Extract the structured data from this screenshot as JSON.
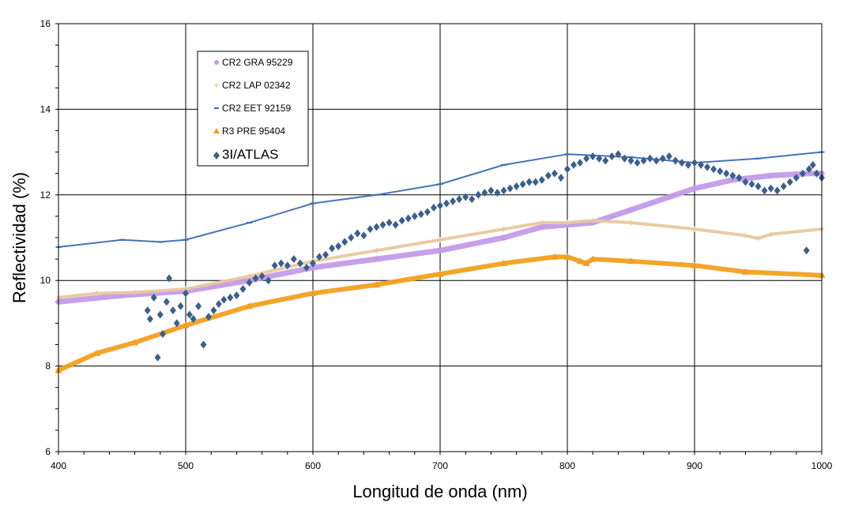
{
  "chart_data": {
    "type": "scatter",
    "title": "",
    "xlabel": "Longitud de onda (nm)",
    "ylabel": "Reflectividad (%)",
    "xlim": [
      400,
      1000
    ],
    "ylim": [
      6,
      16
    ],
    "xticks": [
      400,
      500,
      600,
      700,
      800,
      900,
      1000
    ],
    "yticks": [
      6,
      8,
      10,
      12,
      14,
      16
    ],
    "grid": true,
    "legend_position": "top-left",
    "series": [
      {
        "name": "CR2 GRA 95229",
        "color": "#c39be8",
        "marker": "circle",
        "x": [
          400,
          450,
          500,
          550,
          600,
          650,
          700,
          750,
          780,
          800,
          820,
          850,
          880,
          900,
          930,
          960,
          990,
          1000
        ],
        "y": [
          9.5,
          9.65,
          9.75,
          10.0,
          10.3,
          10.5,
          10.7,
          11.0,
          11.25,
          11.3,
          11.35,
          11.65,
          11.95,
          12.15,
          12.35,
          12.45,
          12.5,
          12.5
        ]
      },
      {
        "name": "CR2 LAP 02342",
        "color": "#e8c8a0",
        "marker": "plus",
        "x": [
          400,
          430,
          460,
          500,
          550,
          600,
          650,
          700,
          750,
          780,
          800,
          820,
          850,
          900,
          940,
          950,
          960,
          1000
        ],
        "y": [
          9.6,
          9.7,
          9.72,
          9.8,
          10.1,
          10.45,
          10.7,
          10.95,
          11.2,
          11.35,
          11.35,
          11.4,
          11.35,
          11.2,
          11.05,
          10.98,
          11.08,
          11.2
        ]
      },
      {
        "name": "CR2 EET 92159",
        "color": "#3d6bb3",
        "marker": "dash",
        "x": [
          400,
          450,
          480,
          500,
          550,
          600,
          650,
          700,
          750,
          800,
          850,
          900,
          950,
          1000
        ],
        "y": [
          10.78,
          10.95,
          10.9,
          10.95,
          11.35,
          11.8,
          12.0,
          12.25,
          12.7,
          12.95,
          12.88,
          12.75,
          12.85,
          13.0
        ]
      },
      {
        "name": "R3 PRE 95404",
        "color": "#f2a020",
        "marker": "triangle",
        "x": [
          400,
          430,
          460,
          500,
          550,
          600,
          650,
          700,
          750,
          790,
          800,
          810,
          815,
          820,
          850,
          900,
          940,
          1000
        ],
        "y": [
          7.9,
          8.3,
          8.55,
          8.95,
          9.4,
          9.7,
          9.9,
          10.15,
          10.4,
          10.55,
          10.55,
          10.45,
          10.4,
          10.5,
          10.45,
          10.35,
          10.2,
          10.12
        ]
      },
      {
        "name": "3I/ATLAS",
        "color": "#3d5f8a",
        "marker": "diamond",
        "x": [
          470,
          472,
          475,
          478,
          480,
          482,
          485,
          487,
          490,
          493,
          496,
          500,
          503,
          506,
          510,
          514,
          518,
          522,
          526,
          530,
          535,
          540,
          545,
          550,
          555,
          560,
          565,
          570,
          575,
          580,
          585,
          590,
          595,
          600,
          605,
          610,
          615,
          620,
          625,
          630,
          635,
          640,
          645,
          650,
          655,
          660,
          665,
          670,
          675,
          680,
          685,
          690,
          695,
          700,
          705,
          710,
          715,
          720,
          725,
          730,
          735,
          740,
          745,
          750,
          755,
          760,
          765,
          770,
          775,
          780,
          785,
          790,
          795,
          800,
          805,
          810,
          815,
          820,
          825,
          830,
          835,
          840,
          845,
          850,
          855,
          860,
          865,
          870,
          875,
          880,
          885,
          890,
          895,
          900,
          905,
          910,
          915,
          920,
          925,
          930,
          935,
          940,
          945,
          950,
          955,
          960,
          965,
          970,
          975,
          980,
          985,
          988,
          990,
          993,
          996,
          1000
        ],
        "y": [
          9.3,
          9.1,
          9.6,
          8.2,
          9.2,
          8.75,
          9.5,
          10.05,
          9.3,
          9.0,
          9.4,
          9.7,
          9.2,
          9.1,
          9.4,
          8.5,
          9.15,
          9.3,
          9.45,
          9.55,
          9.6,
          9.65,
          9.8,
          9.95,
          10.05,
          10.1,
          10.0,
          10.35,
          10.4,
          10.35,
          10.5,
          10.4,
          10.3,
          10.4,
          10.55,
          10.6,
          10.75,
          10.8,
          10.9,
          11.0,
          11.1,
          11.05,
          11.2,
          11.25,
          11.3,
          11.35,
          11.3,
          11.4,
          11.45,
          11.5,
          11.55,
          11.6,
          11.7,
          11.75,
          11.8,
          11.85,
          11.9,
          11.95,
          11.9,
          12.0,
          12.05,
          12.1,
          12.05,
          12.1,
          12.15,
          12.2,
          12.25,
          12.3,
          12.3,
          12.35,
          12.45,
          12.5,
          12.4,
          12.6,
          12.7,
          12.75,
          12.85,
          12.9,
          12.85,
          12.8,
          12.9,
          12.95,
          12.85,
          12.8,
          12.75,
          12.8,
          12.85,
          12.8,
          12.85,
          12.9,
          12.8,
          12.75,
          12.7,
          12.75,
          12.7,
          12.65,
          12.6,
          12.55,
          12.5,
          12.45,
          12.4,
          12.3,
          12.25,
          12.2,
          12.1,
          12.15,
          12.1,
          12.2,
          12.3,
          12.4,
          12.5,
          10.7,
          12.6,
          12.7,
          12.5,
          12.4
        ]
      }
    ]
  }
}
